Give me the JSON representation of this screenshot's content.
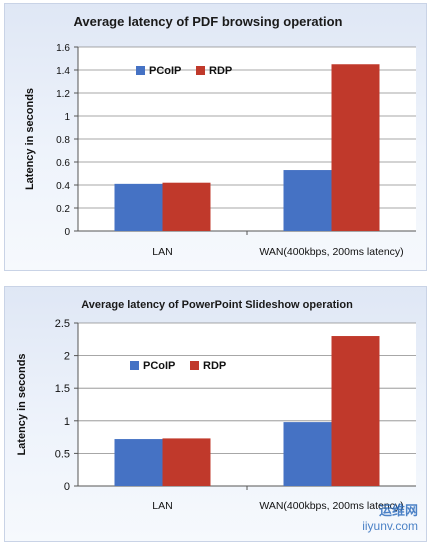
{
  "colors": {
    "pcoip": "#4572c4",
    "rdp": "#c0392b"
  },
  "chart_data": [
    {
      "type": "bar",
      "title": "Average latency of  PDF browsing operation",
      "ylabel": "Latency  in  seconds",
      "xlabel": "",
      "categories": [
        "LAN",
        "WAN(400kbps, 200ms latency)"
      ],
      "series": [
        {
          "name": "PCoIP",
          "values": [
            0.41,
            0.53
          ]
        },
        {
          "name": "RDP",
          "values": [
            0.42,
            1.45
          ]
        }
      ],
      "ylim": [
        0,
        1.6
      ],
      "yticks": [
        "0",
        "0.2",
        "0.4",
        "0.6",
        "0.8",
        "1",
        "1.2",
        "1.4",
        "1.6"
      ],
      "grid": true,
      "legend": "top-left"
    },
    {
      "type": "bar",
      "title": "Average latency of PowerPoint Slideshow operation",
      "ylabel": "Latency  in  seconds",
      "xlabel": "",
      "categories": [
        "LAN",
        "WAN(400kbps, 200ms latency)"
      ],
      "series": [
        {
          "name": "PCoIP",
          "values": [
            0.72,
            0.98
          ]
        },
        {
          "name": "RDP",
          "values": [
            0.73,
            2.3
          ]
        }
      ],
      "ylim": [
        0,
        2.5
      ],
      "yticks": [
        "0",
        "0.5",
        "1",
        "1.5",
        "2",
        "2.5"
      ],
      "grid": true,
      "legend": "top-left"
    }
  ],
  "watermark": {
    "line1": "运维网",
    "line2": "iiyunv.com"
  }
}
